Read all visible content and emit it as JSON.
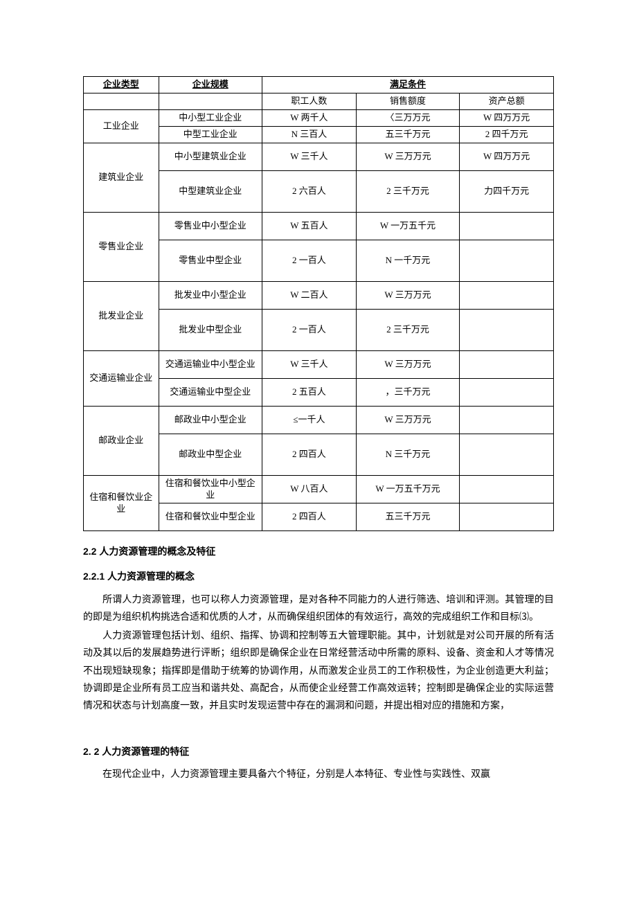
{
  "table": {
    "header": {
      "col1": "企业类型",
      "col2": "企业规模",
      "col3_merged": "满足条件",
      "sub1": "职工人数",
      "sub2": "销售额度",
      "sub3": "资产总额"
    },
    "rows": [
      {
        "c1": "工业企业",
        "c2": "中小型工业企业",
        "c3": "W 两千人",
        "c4": "〈三万万元",
        "c5": "W 四万万元",
        "h": "h30",
        "r1span": 2
      },
      {
        "c2": "中型工业企业",
        "c3": "N 三百人",
        "c4": "五三千万元",
        "c5": "2 四千万元",
        "h": "h30"
      },
      {
        "c1": "建筑业企业",
        "c2": "中小型建筑业企业",
        "c3": "W 三千人",
        "c4": "W 三万万元",
        "c5": "W 四万万元",
        "h": "h40",
        "r1span": 2
      },
      {
        "c2": "中型建筑业企业",
        "c3": "2 六百人",
        "c4": "2 三千万元",
        "c5": "力四千万元",
        "h": "h60"
      },
      {
        "c1": "零售业企业",
        "c2": "零售业中小型企业",
        "c3": "W 五百人",
        "c4": "W 一万五千元",
        "c5": "",
        "h": "h40",
        "r1span": 2
      },
      {
        "c2": "零售业中型企业",
        "c3": "2 一百人",
        "c4": "N 一千万元",
        "c5": "",
        "h": "h60"
      },
      {
        "c1": "批发业企业",
        "c2": "批发业中小型企业",
        "c3": "W 二百人",
        "c4": "W 三万万元",
        "c5": "",
        "h": "h40",
        "r1span": 2
      },
      {
        "c2": "批发业中型企业",
        "c3": "2 一百人",
        "c4": "2 三千万元",
        "c5": "",
        "h": "h60"
      },
      {
        "c1": "交通运输业企业",
        "c2": "交通运输业中小型企业",
        "c3": "W 三千人",
        "c4": "W 三万万元",
        "c5": "",
        "h": "h40",
        "r1span": 2
      },
      {
        "c2": "交通运输业中型企业",
        "c3": "2 五百人",
        "c4": "，三千万元",
        "c5": "",
        "h": "h40"
      },
      {
        "c1": "邮政业企业",
        "c2": "邮政业中小型企业",
        "c3": "≤一千人",
        "c4": "W 三万万元",
        "c5": "",
        "h": "h40",
        "r1span": 2
      },
      {
        "c2": "邮政业中型企业",
        "c3": "2 四百人",
        "c4": "N 三千万元",
        "c5": "",
        "h": "h60"
      },
      {
        "c1": "住宿和餐饮业企业",
        "c2": "住宿和餐饮业中小型企业",
        "c3": "W 八百人",
        "c4": "W 一万五千万元",
        "c5": "",
        "h": "h40",
        "r1span": 2
      },
      {
        "c2": "住宿和餐饮业中型企业",
        "c3": "2 四百人",
        "c4": "五三千万元",
        "c5": "",
        "h": "h40"
      }
    ]
  },
  "headings": {
    "h22": "2.2 人力资源管理的概念及特征",
    "h221": "2.2.1 人力资源管理的概念",
    "h22x": "2.  2 人力资源管理的特征"
  },
  "paragraphs": {
    "p1": "所谓人力资源管理，也可以称人力资源管理，是对各种不同能力的人进行筛选、培训和评测。其管理的目的即是为组织机构挑选合适和优质的人才，从而确保组织团体的有效运行，高效的完成组织工作和目标⑶。",
    "p2": "人力资源管理包括计划、组织、指挥、协调和控制等五大管理职能。其中，计划就是对公司开展的所有活动及其以后的发展趋势进行评断；组织即是确保企业在日常经营活动中所需的原料、设备、资金和人才等情况不出现短缺现象；指挥即是借助于统筹的协调作用，从而激发企业员工的工作积极性，为企业创造更大利益；协调即是企业所有员工应当和谐共处、高配合，从而使企业经营工作高效运转；控制即是确保企业的实际运营情况和状态与计划高度一致，并且实时发现运营中存在的漏洞和问题，并提出相对应的措施和方案，",
    "p3": "在现代企业中，人力资源管理主要具备六个特征，分别是人本特征、专业性与实践性、双赢"
  }
}
